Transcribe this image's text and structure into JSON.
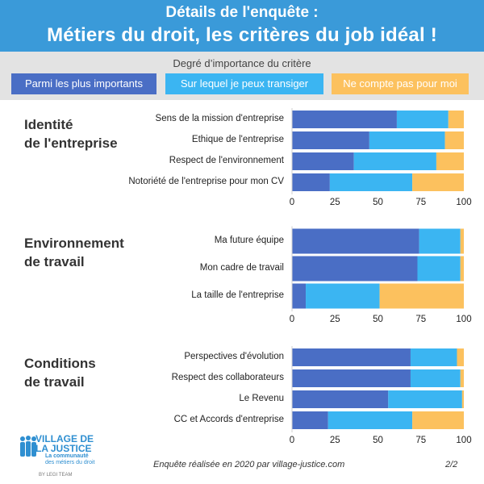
{
  "header": {
    "line1": "Détails  de l'enquête :",
    "line2": "Métiers du droit, les critères du job idéal !"
  },
  "legend": {
    "title": "Degré d’importance du critère",
    "items": [
      {
        "label": "Parmi les plus importants",
        "color": "#4a6ec5"
      },
      {
        "label": "Sur lequel je peux transiger",
        "color": "#3bb5f2"
      },
      {
        "label": "Ne compte pas pour moi",
        "color": "#fcc15e"
      }
    ]
  },
  "chart_data": [
    {
      "type": "bar",
      "orientation": "horizontal",
      "stacked": true,
      "title": "Identité de l'entreprise",
      "title_lines": [
        "Identité",
        "de l'entreprise"
      ],
      "categories": [
        "Sens de la mission d'entreprise",
        "Ethique de l'entreprise",
        "Respect de l'environnement",
        "Notoriété de l'entreprise pour mon CV"
      ],
      "series": [
        {
          "name": "Parmi les plus importants",
          "values": [
            61,
            45,
            36,
            22
          ]
        },
        {
          "name": "Sur lequel je peux transiger",
          "values": [
            30,
            44,
            48,
            48
          ]
        },
        {
          "name": "Ne compte pas pour moi",
          "values": [
            9,
            11,
            16,
            30
          ]
        }
      ],
      "xlim": [
        0,
        100
      ],
      "xticks": [
        "0",
        "25",
        "50",
        "75",
        "100"
      ]
    },
    {
      "type": "bar",
      "orientation": "horizontal",
      "stacked": true,
      "title": "Environnement de travail",
      "title_lines": [
        "Environnement",
        "de travail"
      ],
      "categories": [
        "Ma future équipe",
        "Mon cadre de travail",
        "La taille de l'entreprise"
      ],
      "series": [
        {
          "name": "Parmi les plus importants",
          "values": [
            74,
            73,
            8
          ]
        },
        {
          "name": "Sur lequel je peux transiger",
          "values": [
            24,
            25,
            43
          ]
        },
        {
          "name": "Ne compte pas pour moi",
          "values": [
            2,
            2,
            49
          ]
        }
      ],
      "xlim": [
        0,
        100
      ],
      "xticks": [
        "0",
        "25",
        "50",
        "75",
        "100"
      ]
    },
    {
      "type": "bar",
      "orientation": "horizontal",
      "stacked": true,
      "title": "Conditions de travail",
      "title_lines": [
        "Conditions",
        "de travail"
      ],
      "categories": [
        "Perspectives d'évolution",
        "Respect des collaborateurs",
        "Le Revenu",
        "CC et Accords d'entreprise"
      ],
      "series": [
        {
          "name": "Parmi les plus importants",
          "values": [
            69,
            69,
            56,
            21
          ]
        },
        {
          "name": "Sur lequel je peux transiger",
          "values": [
            27,
            29,
            43,
            49
          ]
        },
        {
          "name": "Ne compte pas pour moi",
          "values": [
            4,
            2,
            1,
            30
          ]
        }
      ],
      "xlim": [
        0,
        100
      ],
      "xticks": [
        "0",
        "25",
        "50",
        "75",
        "100"
      ]
    }
  ],
  "logo": {
    "line1": "VILLAGE DE",
    "line2": "LA JUSTICE",
    "sub1": "La communauté",
    "sub2": "des métiers du droit",
    "by": "BY LEGI TEAM"
  },
  "footer": {
    "text": "Enquête réalisée en 2020 par village-justice.com",
    "page": "2/2"
  }
}
